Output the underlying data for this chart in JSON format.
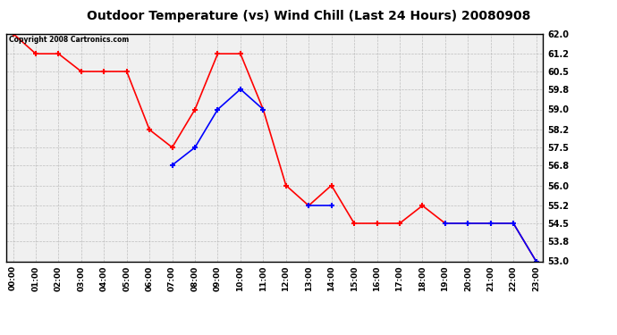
{
  "title": "Outdoor Temperature (vs) Wind Chill (Last 24 Hours) 20080908",
  "copyright_text": "Copyright 2008 Cartronics.com",
  "x_labels": [
    "00:00",
    "01:00",
    "02:00",
    "03:00",
    "04:00",
    "05:00",
    "06:00",
    "07:00",
    "08:00",
    "09:00",
    "10:00",
    "11:00",
    "12:00",
    "13:00",
    "14:00",
    "15:00",
    "16:00",
    "17:00",
    "18:00",
    "19:00",
    "20:00",
    "21:00",
    "22:00",
    "23:00"
  ],
  "temp_red": [
    62.0,
    61.2,
    61.2,
    60.5,
    60.5,
    60.5,
    58.2,
    57.5,
    59.0,
    61.2,
    61.2,
    59.0,
    56.0,
    55.2,
    56.0,
    54.5,
    54.5,
    54.5,
    55.2,
    54.5,
    54.5,
    54.5,
    54.5,
    53.0
  ],
  "wind_chill_blue": [
    null,
    null,
    null,
    null,
    null,
    null,
    null,
    56.8,
    57.5,
    59.0,
    59.8,
    59.0,
    null,
    55.2,
    55.2,
    null,
    null,
    null,
    null,
    54.5,
    54.5,
    54.5,
    54.5,
    53.0
  ],
  "ylim_min": 53.0,
  "ylim_max": 62.0,
  "yticks": [
    53.0,
    53.8,
    54.5,
    55.2,
    56.0,
    56.8,
    57.5,
    58.2,
    59.0,
    59.8,
    60.5,
    61.2,
    62.0
  ],
  "bg_color": "#ffffff",
  "plot_bg_color": "#f0f0f0",
  "grid_color": "#aaaaaa",
  "temp_color": "#ff0000",
  "wind_color": "#0000ff",
  "title_fontsize": 10,
  "marker_size": 5
}
